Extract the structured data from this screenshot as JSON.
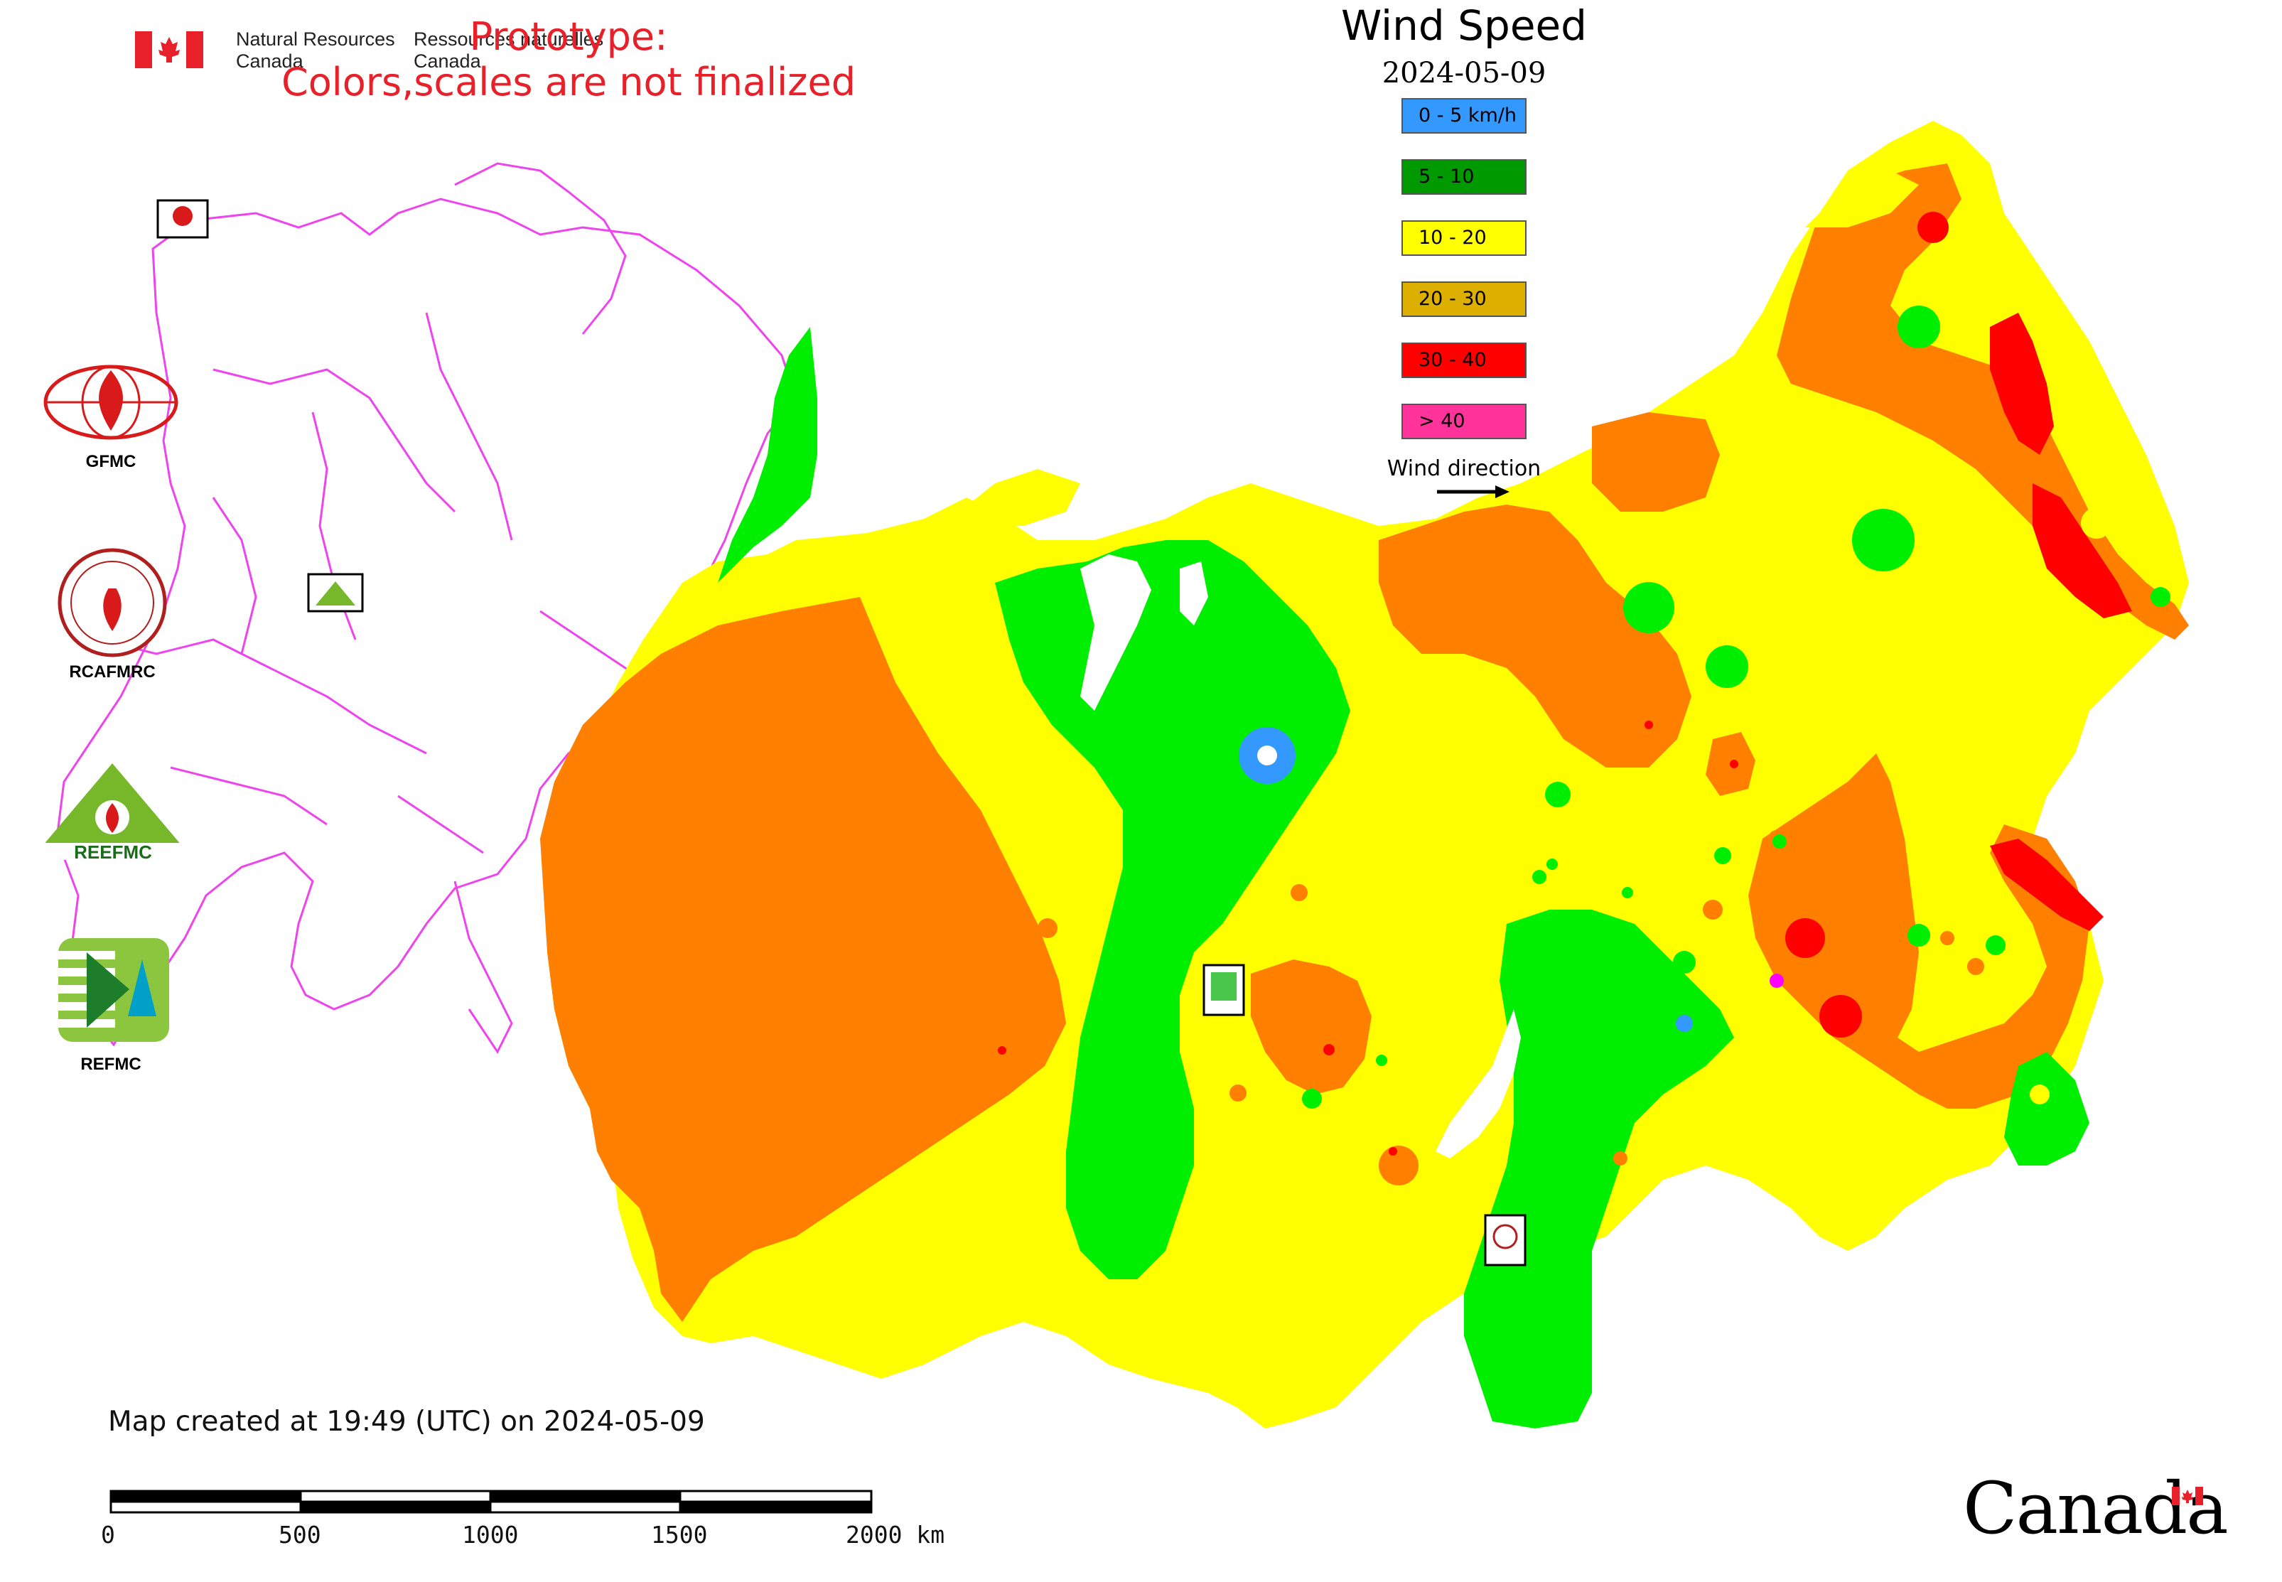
{
  "header": {
    "dept_en": "Natural Resources\nCanada",
    "dept_fr": "Ressources naturelles\nCanada",
    "prototype_line1": "Prototype:",
    "prototype_line2": "Colors,scales are not finalized"
  },
  "legend": {
    "title": "Wind Speed",
    "date": "2024-05-09",
    "classes": [
      {
        "label": "0 - 5 km/h",
        "color": "#3399ff"
      },
      {
        "label": "5 - 10",
        "color": "#009900"
      },
      {
        "label": "10 - 20",
        "color": "#ffff00"
      },
      {
        "label": "20 - 30",
        "color": "#ddb000"
      },
      {
        "label": "30 - 40",
        "color": "#ff0000"
      },
      {
        "label": "> 40",
        "color": "#ff3399"
      }
    ],
    "wind_direction_label": "Wind direction"
  },
  "organizations": [
    {
      "name": "GFMC"
    },
    {
      "name": "RCAFMRC"
    },
    {
      "name": "REEFMC"
    },
    {
      "name": "REFMC"
    }
  ],
  "footer": {
    "created": "Map created at 19:49 (UTC) on 2024-05-09",
    "scale_labels": [
      "0",
      "500",
      "1000",
      "1500",
      "2000 km"
    ],
    "wordmark": "Canada"
  },
  "map_colors": {
    "orange": "#ff8000",
    "yellow": "#ffff00",
    "green": "#00ee00",
    "red": "#ff0000",
    "magenta": "#ff00ff",
    "blue": "#3399ff"
  }
}
